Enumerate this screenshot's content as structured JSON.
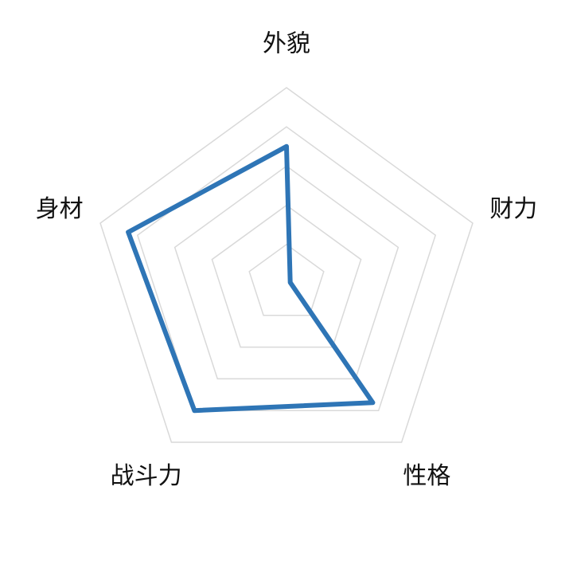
{
  "chart_data": {
    "type": "radar",
    "categories": [
      "外貌",
      "财力",
      "性格",
      "战斗力",
      "身材"
    ],
    "values": [
      70,
      2,
      75,
      80,
      85
    ],
    "color": "#2e75b6",
    "rlim": [
      0,
      100
    ],
    "rticks": [
      20,
      40,
      60,
      80,
      100
    ],
    "grid": true
  }
}
